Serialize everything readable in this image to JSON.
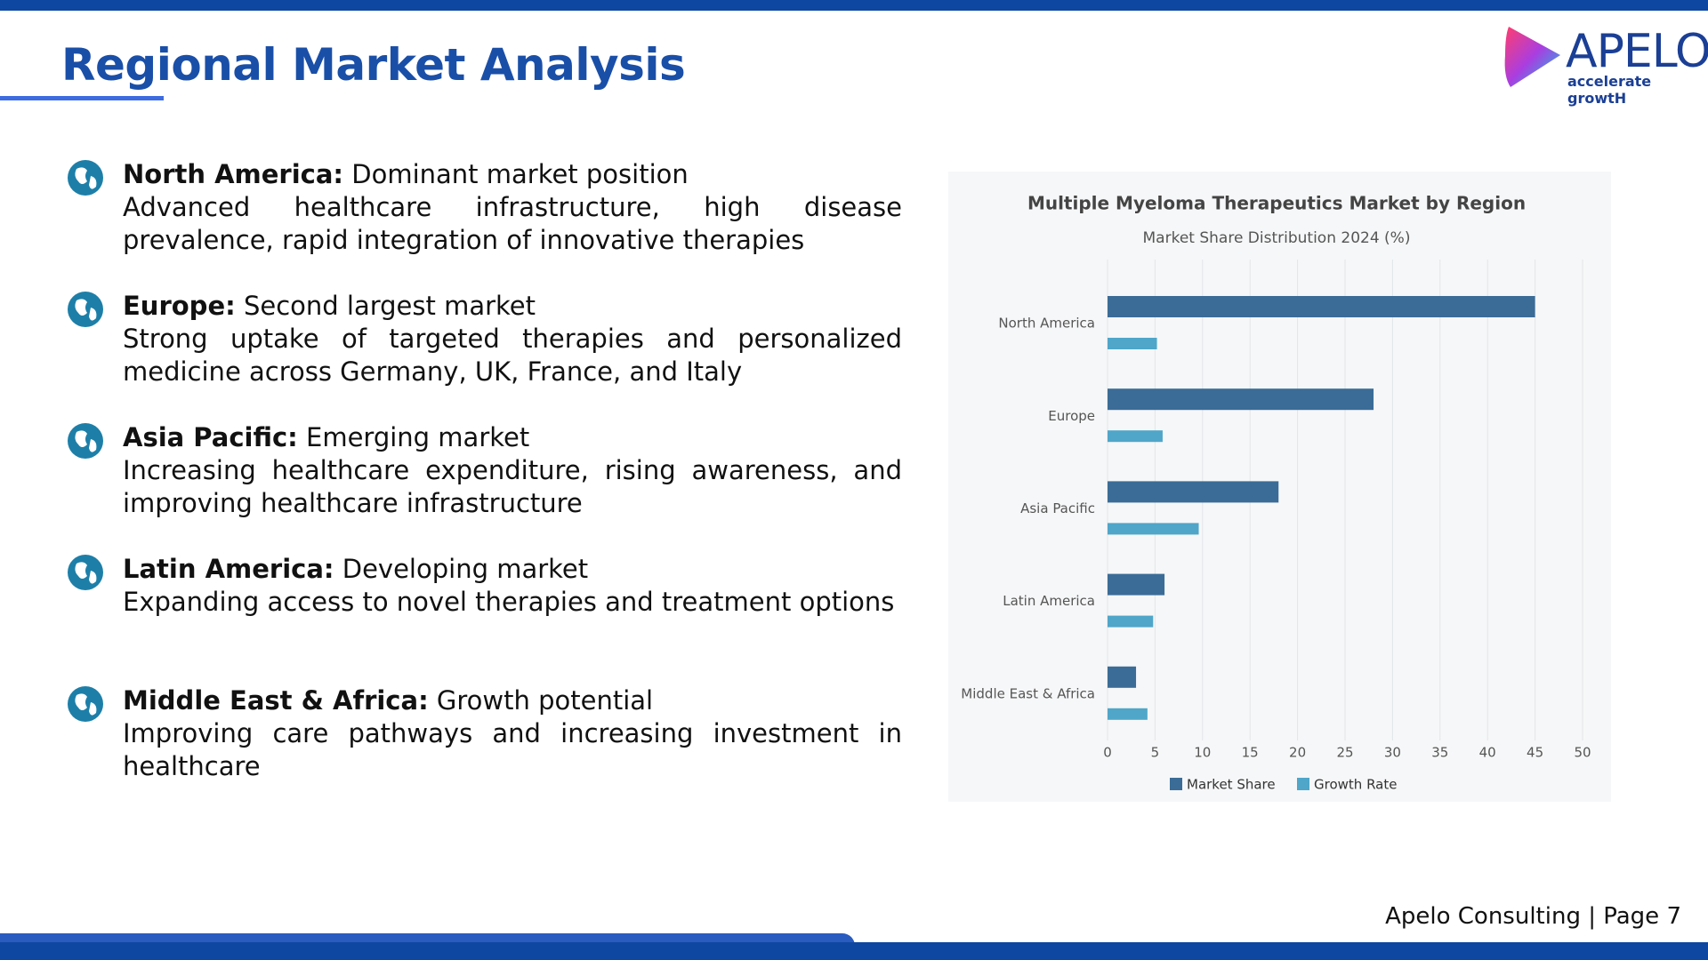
{
  "header": {
    "title": "Regional Market Analysis"
  },
  "logo": {
    "name": "APELO",
    "tagline": "accelerate growtH"
  },
  "regions": [
    {
      "name": "North America:",
      "summary": "Dominant market position",
      "details": "Advanced healthcare infrastructure, high disease prevalence, rapid integration of innovative therapies"
    },
    {
      "name": "Europe:",
      "summary": "Second largest market",
      "details": "Strong uptake of targeted therapies and personalized medicine across Germany, UK, France, and Italy"
    },
    {
      "name": "Asia Pacific:",
      "summary": "Emerging market",
      "details": "Increasing healthcare expenditure, rising awareness, and improving healthcare infrastructure"
    },
    {
      "name": "Latin America:",
      "summary": "Developing market",
      "details": "Expanding access to novel therapies and treatment options"
    },
    {
      "name": "Middle East & Africa:",
      "summary": "Growth potential",
      "details": "Improving care pathways and increasing investment in healthcare"
    }
  ],
  "chart_data": {
    "type": "bar",
    "orientation": "horizontal",
    "title": "Multiple Myeloma Therapeutics Market by Region",
    "subtitle": "Market Share Distribution 2024 (%)",
    "categories": [
      "North America",
      "Europe",
      "Asia Pacific",
      "Latin America",
      "Middle East & Africa"
    ],
    "series": [
      {
        "name": "Market Share",
        "color": "#3b6c97",
        "values": [
          45,
          28,
          18,
          6,
          3
        ]
      },
      {
        "name": "Growth Rate",
        "color": "#4fa6c9",
        "values": [
          5.2,
          5.8,
          9.6,
          4.8,
          4.2
        ]
      }
    ],
    "xlim": [
      0,
      50
    ],
    "xticks": [
      0,
      5,
      10,
      15,
      20,
      25,
      30,
      35,
      40,
      45,
      50
    ],
    "grid": true,
    "legend": "bottom"
  },
  "footer": {
    "text": "Apelo Consulting | Page 7"
  }
}
